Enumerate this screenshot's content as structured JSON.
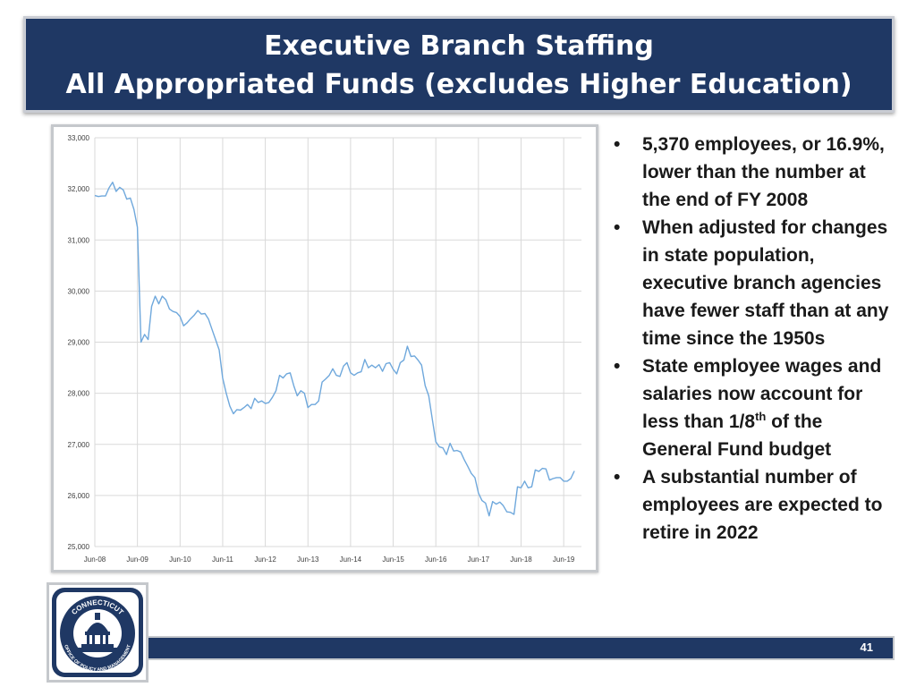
{
  "slide": {
    "title_line1": "Executive Branch Staffing",
    "title_line2": "All Appropriated Funds (excludes Higher Education)",
    "page_number": "41",
    "colors": {
      "title_bg": "#1f3864",
      "line": "#6fa8dc",
      "grid": "#d9d9d9"
    }
  },
  "logo": {
    "top_text": "CONNECTICUT",
    "bottom_text": "OFFICE OF POLICY AND MANAGEMENT",
    "icon": "capitol-dome-seal-icon"
  },
  "bullets": [
    {
      "text": "5,370 employees, or 16.9%, lower than the number at the end of FY 2008"
    },
    {
      "text": "When adjusted for changes in state population, executive branch agencies have fewer staff than at any time since the 1950s"
    },
    {
      "pre": "State employee wages and salaries now account for less than 1/8",
      "sup": "th",
      "post": " of the General Fund budget"
    },
    {
      "text": "A substantial number of employees are expected to retire in 2022"
    }
  ],
  "chart_data": {
    "type": "line",
    "title": "",
    "xlabel": "",
    "ylabel": "",
    "ylim": [
      25000,
      33000
    ],
    "yticks": [
      25000,
      26000,
      27000,
      28000,
      29000,
      30000,
      31000,
      32000,
      33000
    ],
    "ytick_labels": [
      "25,000",
      "26,000",
      "27,000",
      "28,000",
      "29,000",
      "30,000",
      "31,000",
      "32,000",
      "33,000"
    ],
    "xticks": [
      "Jun-08",
      "Jun-09",
      "Jun-10",
      "Jun-11",
      "Jun-12",
      "Jun-13",
      "Jun-14",
      "Jun-15",
      "Jun-16",
      "Jun-17",
      "Jun-18",
      "Jun-19"
    ],
    "xlim_months": [
      "2008-06",
      "2019-11"
    ],
    "grid": true,
    "legend": "none",
    "series": [
      {
        "values": [
          [
            "2008-06",
            31870
          ],
          [
            "2008-07",
            31850
          ],
          [
            "2008-08",
            31860
          ],
          [
            "2008-09",
            31860
          ],
          [
            "2008-10",
            32020
          ],
          [
            "2008-11",
            32130
          ],
          [
            "2008-12",
            31950
          ],
          [
            "2009-01",
            32030
          ],
          [
            "2009-02",
            31980
          ],
          [
            "2009-03",
            31800
          ],
          [
            "2009-04",
            31820
          ],
          [
            "2009-05",
            31600
          ],
          [
            "2009-06",
            31250
          ],
          [
            "2009-07",
            29000
          ],
          [
            "2009-08",
            29150
          ],
          [
            "2009-09",
            29050
          ],
          [
            "2009-10",
            29700
          ],
          [
            "2009-11",
            29900
          ],
          [
            "2009-12",
            29750
          ],
          [
            "2010-01",
            29900
          ],
          [
            "2010-02",
            29830
          ],
          [
            "2010-03",
            29650
          ],
          [
            "2010-04",
            29600
          ],
          [
            "2010-05",
            29580
          ],
          [
            "2010-06",
            29500
          ],
          [
            "2010-07",
            29320
          ],
          [
            "2010-08",
            29380
          ],
          [
            "2010-09",
            29460
          ],
          [
            "2010-10",
            29530
          ],
          [
            "2010-11",
            29620
          ],
          [
            "2010-12",
            29550
          ],
          [
            "2011-01",
            29560
          ],
          [
            "2011-02",
            29450
          ],
          [
            "2011-03",
            29250
          ],
          [
            "2011-04",
            29050
          ],
          [
            "2011-05",
            28850
          ],
          [
            "2011-06",
            28300
          ],
          [
            "2011-07",
            28000
          ],
          [
            "2011-08",
            27750
          ],
          [
            "2011-09",
            27600
          ],
          [
            "2011-10",
            27680
          ],
          [
            "2011-11",
            27670
          ],
          [
            "2011-12",
            27720
          ],
          [
            "2012-01",
            27780
          ],
          [
            "2012-02",
            27700
          ],
          [
            "2012-03",
            27900
          ],
          [
            "2012-04",
            27820
          ],
          [
            "2012-05",
            27850
          ],
          [
            "2012-06",
            27800
          ],
          [
            "2012-07",
            27820
          ],
          [
            "2012-08",
            27920
          ],
          [
            "2012-09",
            28050
          ],
          [
            "2012-10",
            28350
          ],
          [
            "2012-11",
            28300
          ],
          [
            "2012-12",
            28380
          ],
          [
            "2013-01",
            28400
          ],
          [
            "2013-02",
            28150
          ],
          [
            "2013-03",
            27950
          ],
          [
            "2013-04",
            28050
          ],
          [
            "2013-05",
            28000
          ],
          [
            "2013-06",
            27720
          ],
          [
            "2013-07",
            27780
          ],
          [
            "2013-08",
            27780
          ],
          [
            "2013-09",
            27850
          ],
          [
            "2013-10",
            28220
          ],
          [
            "2013-11",
            28280
          ],
          [
            "2013-12",
            28350
          ],
          [
            "2014-01",
            28480
          ],
          [
            "2014-02",
            28350
          ],
          [
            "2014-03",
            28330
          ],
          [
            "2014-04",
            28530
          ],
          [
            "2014-05",
            28600
          ],
          [
            "2014-06",
            28400
          ],
          [
            "2014-07",
            28350
          ],
          [
            "2014-08",
            28400
          ],
          [
            "2014-09",
            28420
          ],
          [
            "2014-10",
            28660
          ],
          [
            "2014-11",
            28500
          ],
          [
            "2014-12",
            28550
          ],
          [
            "2015-01",
            28500
          ],
          [
            "2015-02",
            28560
          ],
          [
            "2015-03",
            28430
          ],
          [
            "2015-04",
            28580
          ],
          [
            "2015-05",
            28600
          ],
          [
            "2015-06",
            28470
          ],
          [
            "2015-07",
            28380
          ],
          [
            "2015-08",
            28600
          ],
          [
            "2015-09",
            28650
          ],
          [
            "2015-10",
            28920
          ],
          [
            "2015-11",
            28720
          ],
          [
            "2015-12",
            28730
          ],
          [
            "2016-01",
            28650
          ],
          [
            "2016-02",
            28550
          ],
          [
            "2016-03",
            28150
          ],
          [
            "2016-04",
            27950
          ],
          [
            "2016-05",
            27500
          ],
          [
            "2016-06",
            27050
          ],
          [
            "2016-07",
            26950
          ],
          [
            "2016-08",
            26930
          ],
          [
            "2016-09",
            26800
          ],
          [
            "2016-10",
            27020
          ],
          [
            "2016-11",
            26870
          ],
          [
            "2016-12",
            26880
          ],
          [
            "2017-01",
            26850
          ],
          [
            "2017-02",
            26700
          ],
          [
            "2017-03",
            26570
          ],
          [
            "2017-04",
            26430
          ],
          [
            "2017-05",
            26350
          ],
          [
            "2017-06",
            26050
          ],
          [
            "2017-07",
            25900
          ],
          [
            "2017-08",
            25850
          ],
          [
            "2017-09",
            25600
          ],
          [
            "2017-10",
            25880
          ],
          [
            "2017-11",
            25830
          ],
          [
            "2017-12",
            25870
          ],
          [
            "2018-01",
            25800
          ],
          [
            "2018-02",
            25680
          ],
          [
            "2018-03",
            25670
          ],
          [
            "2018-04",
            25630
          ],
          [
            "2018-05",
            26170
          ],
          [
            "2018-06",
            26150
          ],
          [
            "2018-07",
            26280
          ],
          [
            "2018-08",
            26150
          ],
          [
            "2018-09",
            26170
          ],
          [
            "2018-10",
            26500
          ],
          [
            "2018-11",
            26470
          ],
          [
            "2018-12",
            26530
          ],
          [
            "2019-01",
            26520
          ],
          [
            "2019-02",
            26300
          ],
          [
            "2019-03",
            26330
          ],
          [
            "2019-04",
            26350
          ],
          [
            "2019-05",
            26350
          ],
          [
            "2019-06",
            26280
          ],
          [
            "2019-07",
            26280
          ],
          [
            "2019-08",
            26330
          ],
          [
            "2019-09",
            26480
          ]
        ]
      }
    ]
  }
}
